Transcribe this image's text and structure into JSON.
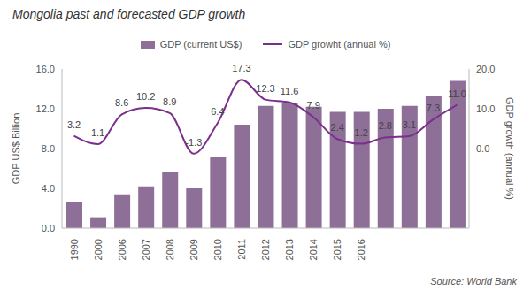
{
  "chart_data": {
    "type": "bar",
    "title": "Mongolia past and forecasted GDP growth",
    "categories": [
      "1990",
      "2000",
      "2006",
      "2007",
      "2008",
      "2009",
      "2010",
      "2011",
      "2012",
      "2013",
      "2014",
      "2015",
      "2016",
      null,
      null,
      null,
      null
    ],
    "series": [
      {
        "name": "GDP (current US$)",
        "type": "bar",
        "color": "#8d6f98",
        "values": [
          2.6,
          1.1,
          3.4,
          4.2,
          5.6,
          4.0,
          7.2,
          10.4,
          12.3,
          12.6,
          12.2,
          11.7,
          11.7,
          12.0,
          12.3,
          13.3,
          14.8
        ]
      },
      {
        "name": "GDP growht (annual %)",
        "type": "line",
        "color": "#7b2f8c",
        "axis": "y2",
        "marker": "none",
        "line_style": "smooth",
        "data_labels": true,
        "values": [
          3.2,
          1.1,
          8.6,
          10.2,
          8.9,
          -1.3,
          6.4,
          17.3,
          12.3,
          11.6,
          7.9,
          2.4,
          1.2,
          2.8,
          3.1,
          7.3,
          11.0
        ],
        "value_labels": [
          "3.2",
          "1.1",
          "8.6",
          "10.2",
          "8.9",
          "-1.3",
          "6.4",
          "17.3",
          "12.3",
          "11.6",
          "7.9",
          "2.4",
          "1.2",
          "2.8",
          "3.1",
          "7.3",
          "11.0"
        ]
      }
    ],
    "y_label": "GDP US$ Billion",
    "y2_label": "GDP growth (annual %)",
    "ylim": [
      0,
      16
    ],
    "yticks": [
      {
        "value": 0,
        "label": "0.0"
      },
      {
        "value": 4,
        "label": "4.0"
      },
      {
        "value": 8,
        "label": "8.0"
      },
      {
        "value": 12,
        "label": "12.0"
      },
      {
        "value": 16,
        "label": "16.0"
      }
    ],
    "y2lim": [
      -20,
      20
    ],
    "y2ticks": [
      {
        "value": 0,
        "label": "0.0"
      },
      {
        "value": 10,
        "label": "10.0"
      },
      {
        "value": 20,
        "label": "20.0"
      }
    ],
    "grid": false,
    "legend": "top",
    "source": "Source: World Bank"
  }
}
